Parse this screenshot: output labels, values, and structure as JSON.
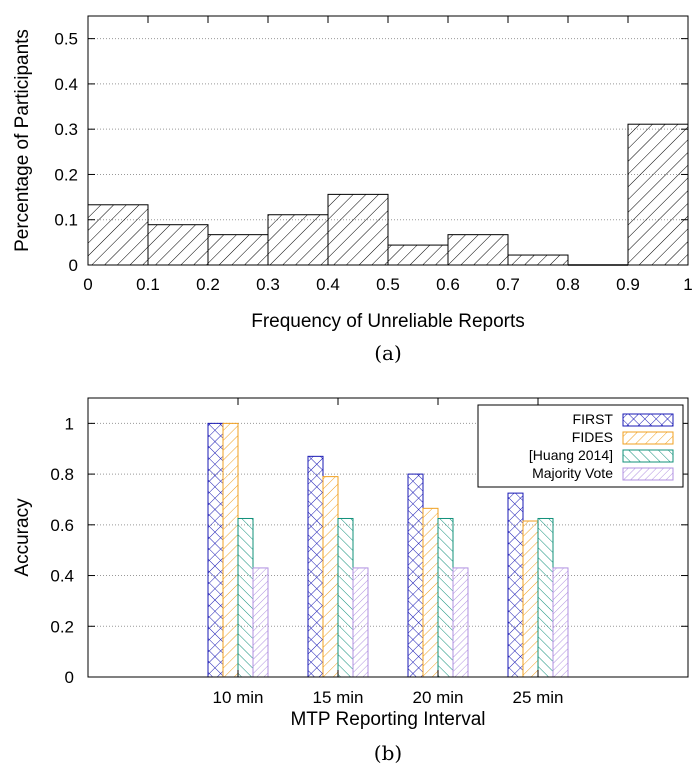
{
  "chart_data": [
    {
      "type": "bar",
      "subplot_label": "(a)",
      "xlabel": "Frequency of Unreliable Reports",
      "ylabel": "Percentage of Participants",
      "xlim": [
        0,
        1
      ],
      "ylim": [
        0,
        0.55
      ],
      "x_ticks": [
        "0",
        "0.1",
        "0.2",
        "0.3",
        "0.4",
        "0.5",
        "0.6",
        "0.7",
        "0.8",
        "0.9",
        "1"
      ],
      "y_ticks": [
        "0",
        "0.1",
        "0.2",
        "0.3",
        "0.4",
        "0.5"
      ],
      "grid": "horizontal",
      "bins": [
        {
          "from": 0.0,
          "to": 0.1,
          "value": 0.133
        },
        {
          "from": 0.1,
          "to": 0.2,
          "value": 0.089
        },
        {
          "from": 0.2,
          "to": 0.3,
          "value": 0.067
        },
        {
          "from": 0.3,
          "to": 0.4,
          "value": 0.111
        },
        {
          "from": 0.4,
          "to": 0.5,
          "value": 0.156
        },
        {
          "from": 0.5,
          "to": 0.6,
          "value": 0.044
        },
        {
          "from": 0.6,
          "to": 0.7,
          "value": 0.067
        },
        {
          "from": 0.7,
          "to": 0.8,
          "value": 0.022
        },
        {
          "from": 0.8,
          "to": 0.9,
          "value": 0.0
        },
        {
          "from": 0.9,
          "to": 1.0,
          "value": 0.311
        }
      ]
    },
    {
      "type": "bar",
      "subplot_label": "(b)",
      "xlabel": "MTP Reporting Interval",
      "ylabel": "Accuracy",
      "ylim": [
        0,
        1.1
      ],
      "y_ticks": [
        "0",
        "0.2",
        "0.4",
        "0.6",
        "0.8",
        "1"
      ],
      "grid": "horizontal",
      "legend_position": "top-right",
      "categories": [
        "10 min",
        "15 min",
        "20 min",
        "25 min"
      ],
      "series": [
        {
          "name": "FIRST",
          "values": [
            1.0,
            0.87,
            0.8,
            0.725
          ],
          "color": "#1a1ab4",
          "pattern": "crosshatch"
        },
        {
          "name": "FIDES",
          "values": [
            1.0,
            0.79,
            0.665,
            0.615
          ],
          "color": "#f0a020",
          "pattern": "diagonal"
        },
        {
          "name": "[Huang 2014]",
          "values": [
            0.625,
            0.625,
            0.625,
            0.625
          ],
          "color": "#10907a",
          "pattern": "backslash"
        },
        {
          "name": "Majority Vote",
          "values": [
            0.43,
            0.43,
            0.43,
            0.43
          ],
          "color": "#b090e0",
          "pattern": "diagonal"
        }
      ]
    }
  ]
}
